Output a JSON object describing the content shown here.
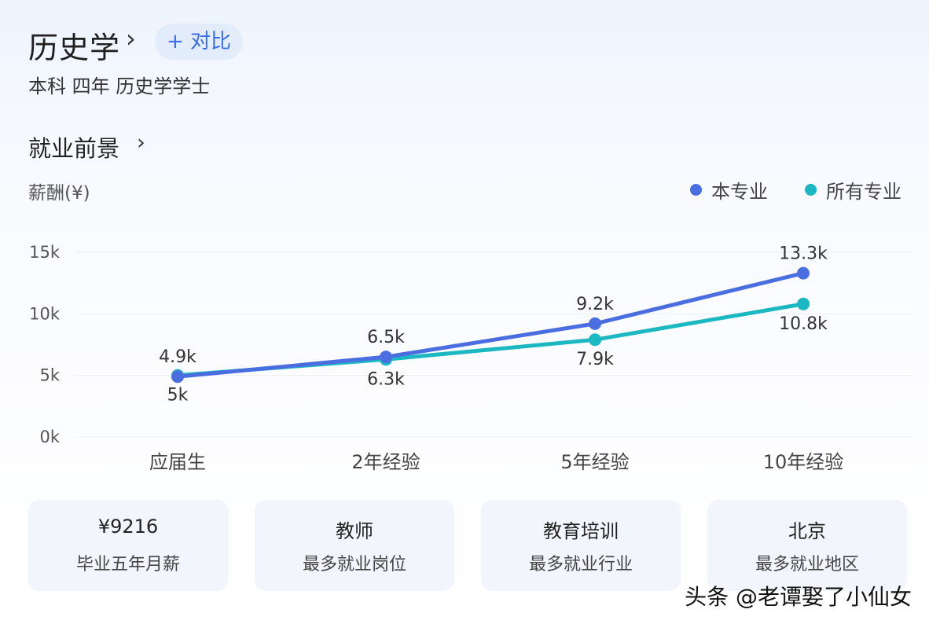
{
  "header": {
    "title": "历史学",
    "compare_label": "+ 对比",
    "subtitle": "本科 四年 历史学学士"
  },
  "section": {
    "title": "就业前景"
  },
  "colors": {
    "this_major": "#4a6ee0",
    "all_majors": "#1cb8c2",
    "accent": "#3b6ee8"
  },
  "icons": {
    "title_chevron": "chevron-right-icon",
    "section_chevron": "chevron-right-icon"
  },
  "chart_data": {
    "type": "line",
    "ylabel": "薪酬(¥)",
    "categories": [
      "应届生",
      "2年经验",
      "5年经验",
      "10年经验"
    ],
    "y_ticks": [
      "0k",
      "5k",
      "10k",
      "15k"
    ],
    "ylim": [
      0,
      15
    ],
    "grid": true,
    "legend_position": "top-right",
    "series": [
      {
        "name": "本专业",
        "values": [
          4.9,
          6.5,
          9.2,
          13.3
        ],
        "labels": [
          "4.9k",
          "6.5k",
          "9.2k",
          "13.3k"
        ]
      },
      {
        "name": "所有专业",
        "values": [
          5.0,
          6.3,
          7.9,
          10.8
        ],
        "labels": [
          "5k",
          "6.3k",
          "7.9k",
          "10.8k"
        ]
      }
    ]
  },
  "cards": [
    {
      "value": "¥9216",
      "label": "毕业五年月薪"
    },
    {
      "value": "教师",
      "label": "最多就业岗位"
    },
    {
      "value": "教育培训",
      "label": "最多就业行业"
    },
    {
      "value": "北京",
      "label": "最多就业地区"
    }
  ],
  "watermark": "头条 @老谭娶了小仙女"
}
